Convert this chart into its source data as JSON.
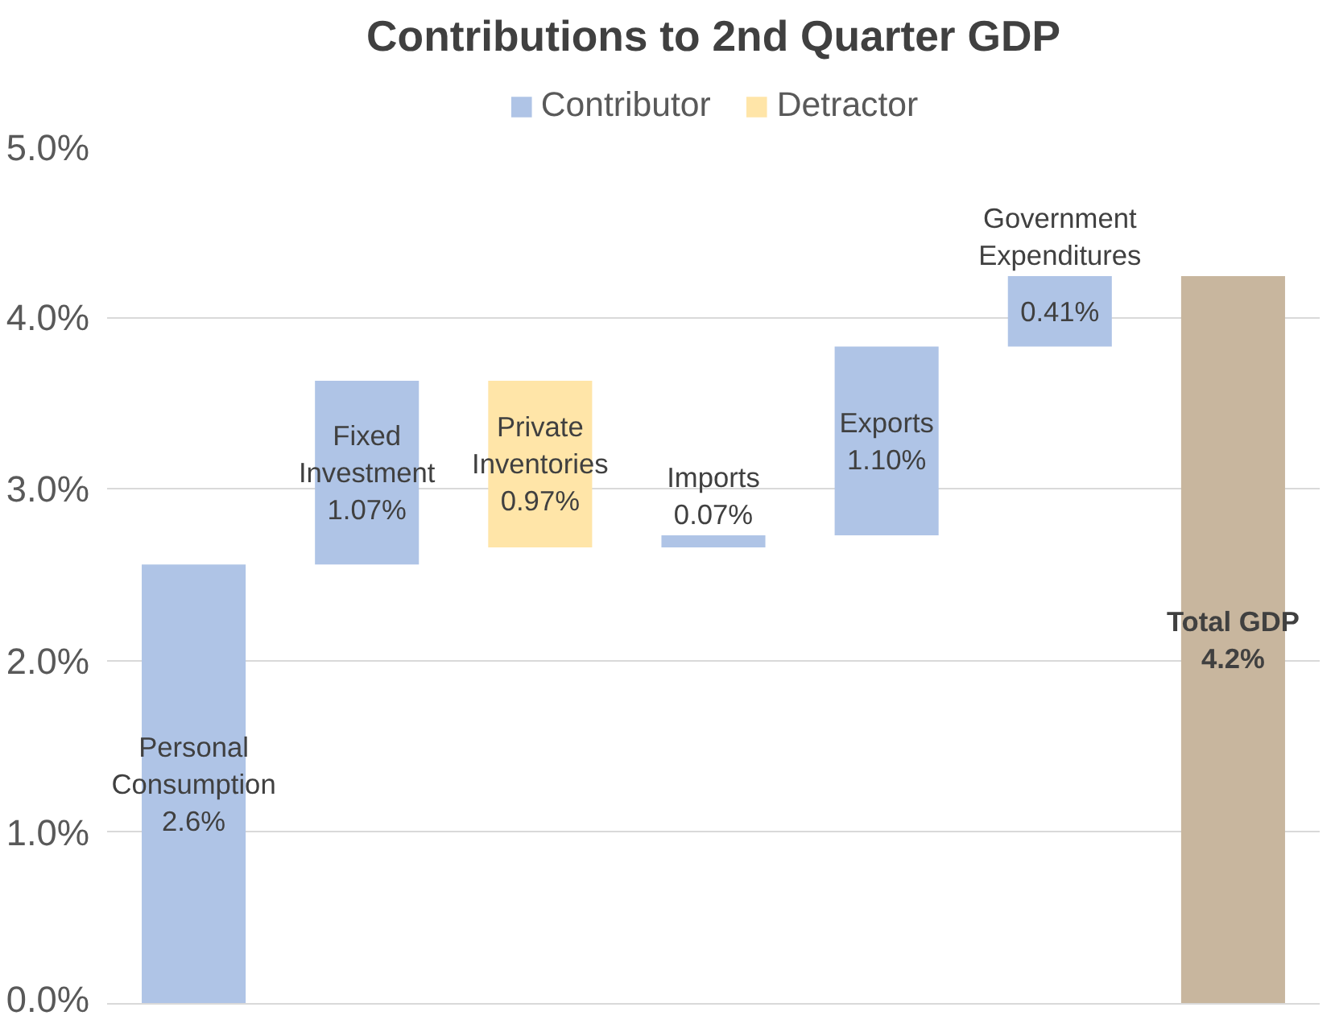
{
  "chart_data": {
    "type": "bar",
    "title": "Contributions to 2nd Quarter GDP",
    "categories": [
      "Personal Consumption",
      "Fixed Investment",
      "Private Inventories",
      "Imports",
      "Exports",
      "Government Expenditures",
      "Total GDP"
    ],
    "series": [
      {
        "name": "Contributor",
        "color": "#afc4e6",
        "base": [
          0,
          2.56,
          null,
          2.66,
          2.73,
          3.83,
          null
        ],
        "values": [
          2.56,
          1.07,
          null,
          0.07,
          1.1,
          0.41,
          null
        ],
        "value_labels": [
          "2.6%",
          "1.07%",
          null,
          "0.07%",
          "1.10%",
          "0.41%",
          null
        ]
      },
      {
        "name": "Detractor",
        "color": "#ffe5a8",
        "base": [
          null,
          null,
          2.66,
          null,
          null,
          null,
          null
        ],
        "values": [
          null,
          null,
          0.97,
          null,
          null,
          null,
          null
        ],
        "value_labels": [
          null,
          null,
          "0.97%",
          null,
          null,
          null,
          null
        ]
      },
      {
        "color": "#c8b69e",
        "base": [
          null,
          null,
          null,
          null,
          null,
          null,
          0
        ],
        "values": [
          null,
          null,
          null,
          null,
          null,
          null,
          4.24
        ],
        "value_labels": [
          null,
          null,
          null,
          null,
          null,
          null,
          "4.2%"
        ]
      }
    ],
    "ylim": [
      0,
      5
    ],
    "yticks": [
      {
        "value": 0,
        "label": "0.0%"
      },
      {
        "value": 1,
        "label": "1.0%"
      },
      {
        "value": 2,
        "label": "2.0%"
      },
      {
        "value": 3,
        "label": "3.0%"
      },
      {
        "value": 4,
        "label": "4.0%"
      },
      {
        "value": 5,
        "label": "5.0%"
      }
    ],
    "tick_labels": "y",
    "grid": "y",
    "legend": "top"
  }
}
